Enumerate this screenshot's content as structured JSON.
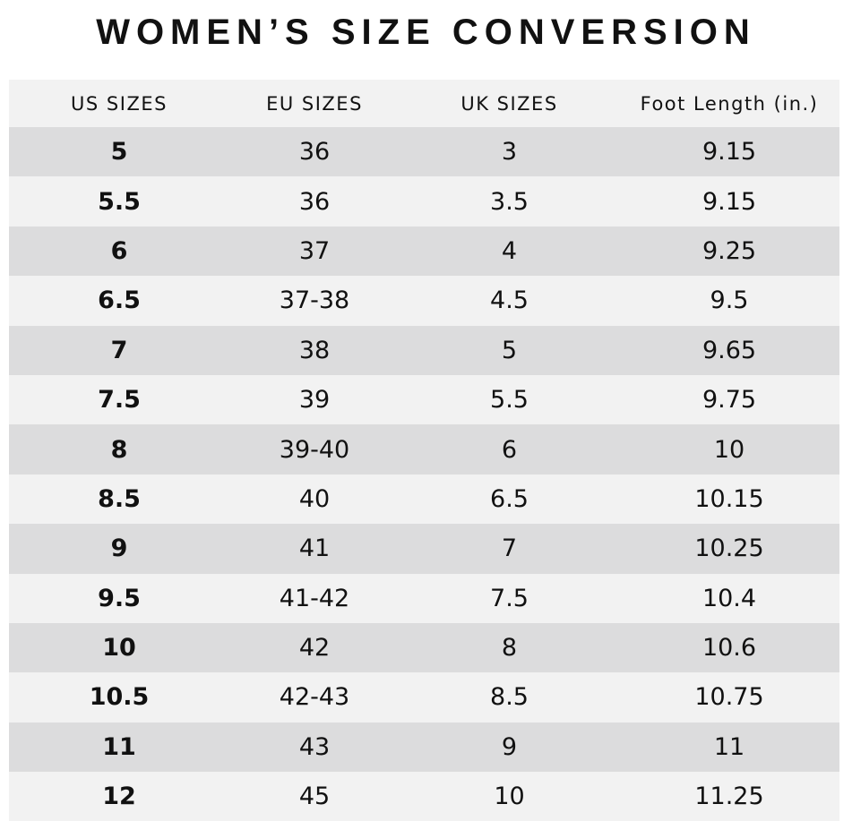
{
  "title": "WOMEN’S SIZE CONVERSION",
  "table": {
    "header": [
      "US SIZES",
      "EU SIZES",
      "UK SIZES",
      "Foot Length (in.)"
    ],
    "rows": [
      [
        "5",
        "36",
        "3",
        "9.15"
      ],
      [
        "5.5",
        "36",
        "3.5",
        "9.15"
      ],
      [
        "6",
        "37",
        "4",
        "9.25"
      ],
      [
        "6.5",
        "37-38",
        "4.5",
        "9.5"
      ],
      [
        "7",
        "38",
        "5",
        "9.65"
      ],
      [
        "7.5",
        "39",
        "5.5",
        "9.75"
      ],
      [
        "8",
        "39-40",
        "6",
        "10"
      ],
      [
        "8.5",
        "40",
        "6.5",
        "10.15"
      ],
      [
        "9",
        "41",
        "7",
        "10.25"
      ],
      [
        "9.5",
        "41-42",
        "7.5",
        "10.4"
      ],
      [
        "10",
        "42",
        "8",
        "10.6"
      ],
      [
        "10.5",
        "42-43",
        "8.5",
        "10.75"
      ],
      [
        "11",
        "43",
        "9",
        "11"
      ],
      [
        "12",
        "45",
        "10",
        "11.25"
      ]
    ]
  }
}
